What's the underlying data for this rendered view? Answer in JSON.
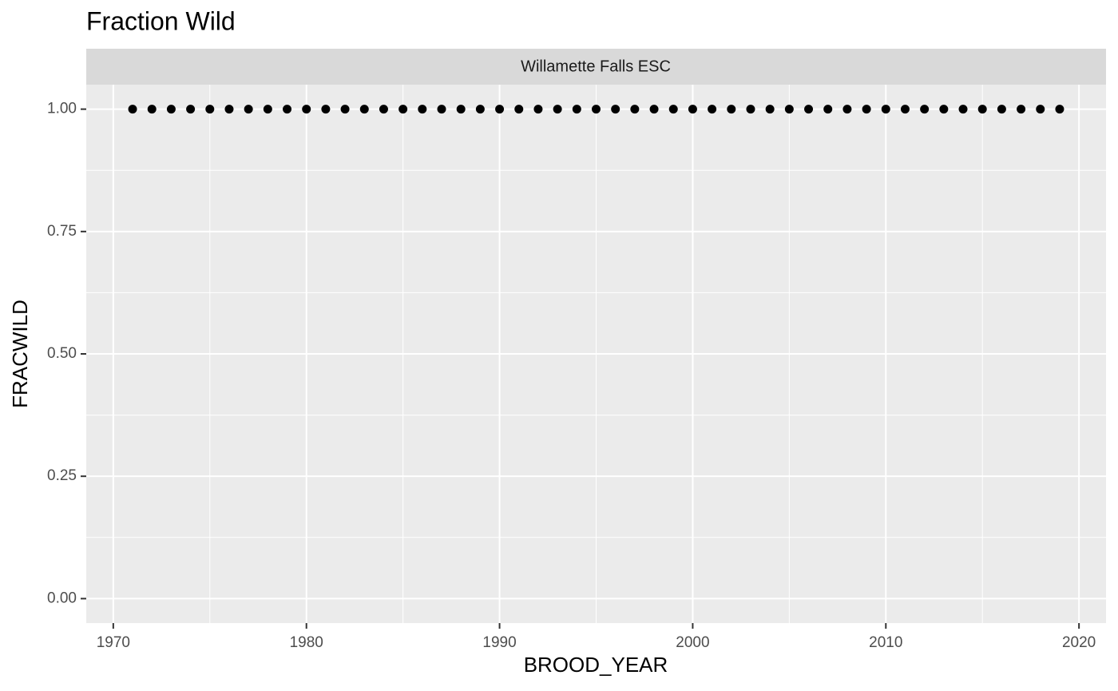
{
  "chart_data": {
    "type": "scatter",
    "title": "Fraction Wild",
    "facet_label": "Willamette Falls ESC",
    "x_label": "BROOD_YEAR",
    "y_label": "FRACWILD",
    "x": [
      1971,
      1972,
      1973,
      1974,
      1975,
      1976,
      1977,
      1978,
      1979,
      1980,
      1981,
      1982,
      1983,
      1984,
      1985,
      1986,
      1987,
      1988,
      1989,
      1990,
      1991,
      1992,
      1993,
      1994,
      1995,
      1996,
      1997,
      1998,
      1999,
      2000,
      2001,
      2002,
      2003,
      2004,
      2005,
      2006,
      2007,
      2008,
      2009,
      2010,
      2011,
      2012,
      2013,
      2014,
      2015,
      2016,
      2017,
      2018,
      2019
    ],
    "values": [
      1,
      1,
      1,
      1,
      1,
      1,
      1,
      1,
      1,
      1,
      1,
      1,
      1,
      1,
      1,
      1,
      1,
      1,
      1,
      1,
      1,
      1,
      1,
      1,
      1,
      1,
      1,
      1,
      1,
      1,
      1,
      1,
      1,
      1,
      1,
      1,
      1,
      1,
      1,
      1,
      1,
      1,
      1,
      1,
      1,
      1,
      1,
      1,
      1
    ],
    "color": "#000000",
    "xlim": [
      1968.6,
      2021.4
    ],
    "xticks": [
      1970,
      1980,
      1990,
      2000,
      2010,
      2020
    ],
    "ylim": [
      -0.05,
      1.05
    ],
    "yticks": [
      {
        "value": 0,
        "label": "0.00"
      },
      {
        "value": 0.25,
        "label": "0.25"
      },
      {
        "value": 0.5,
        "label": "0.50"
      },
      {
        "value": 0.75,
        "label": "0.75"
      },
      {
        "value": 1,
        "label": "1.00"
      }
    ],
    "grid": true
  }
}
